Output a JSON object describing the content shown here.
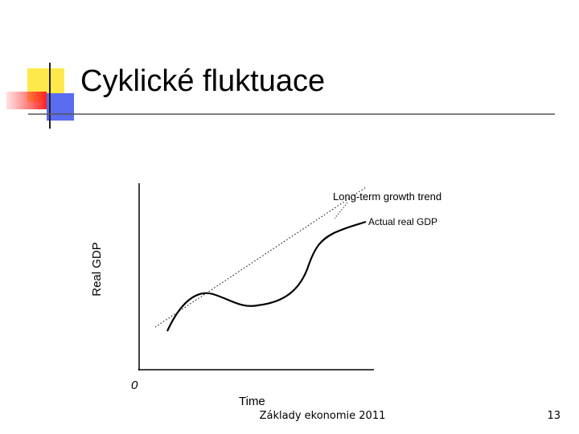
{
  "slide": {
    "title": "Cyklické fluktuace"
  },
  "diagram": {
    "y_axis_label": "Real GDP",
    "x_axis_label": "Time",
    "origin_label": "0",
    "trend_label": "Long-term growth trend",
    "actual_label": "Actual real GDP"
  },
  "footer": {
    "text": "Základy ekonomie 2011",
    "page": "13"
  }
}
